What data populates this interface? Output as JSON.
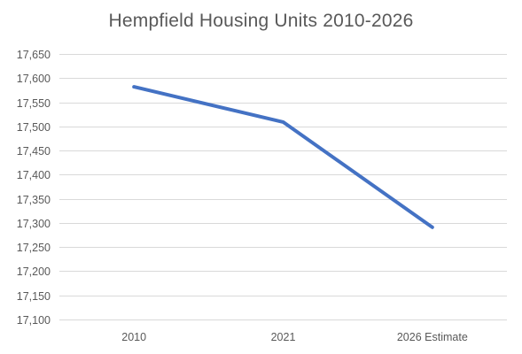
{
  "chart_data": {
    "type": "line",
    "title": "Hempfield Housing Units 2010-2026",
    "xlabel": "",
    "ylabel": "",
    "categories": [
      "2010",
      "2021",
      "2026 Estimate"
    ],
    "series": [
      {
        "values": [
          17582,
          17509,
          17291
        ]
      }
    ],
    "ylim": [
      17100,
      17650
    ],
    "y_ticks": [
      "17,100",
      "17,150",
      "17,200",
      "17,250",
      "17,300",
      "17,350",
      "17,400",
      "17,450",
      "17,500",
      "17,550",
      "17,600",
      "17,650"
    ],
    "y_tick_values": [
      17100,
      17150,
      17200,
      17250,
      17300,
      17350,
      17400,
      17450,
      17500,
      17550,
      17600,
      17650
    ],
    "grid": true,
    "legend": "none",
    "colors": {
      "series": "#4472c4",
      "grid": "#d9d9d9",
      "text": "#595959"
    }
  }
}
